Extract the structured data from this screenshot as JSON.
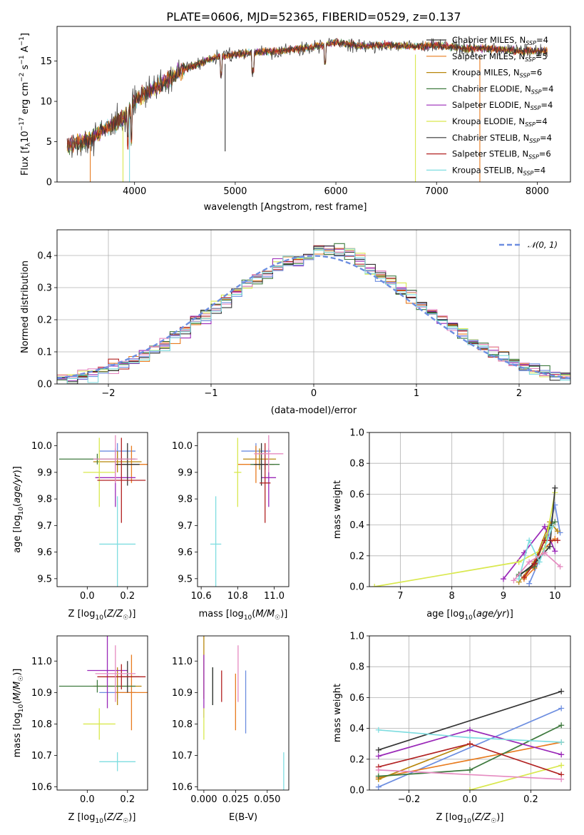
{
  "title": "PLATE=0606, MJD=52365, FIBERID=0529, z=0.137",
  "colors": [
    "#6d8ee0",
    "#e87b1f",
    "#b8860b",
    "#3f7a3f",
    "#9a28b8",
    "#d9e84e",
    "#333333",
    "#b22222",
    "#7fdde0",
    "#e58ac0"
  ],
  "chart_data": [
    {
      "type": "line",
      "name": "spectrum",
      "xlabel": "wavelength [Angstrom, rest frame]",
      "ylabel": "Flux [fλ10⁻¹⁷ erg cm⁻² s⁻¹ A⁻¹]",
      "xlim": [
        3230,
        8330
      ],
      "ylim": [
        0,
        19.3
      ],
      "xticks": [
        4000,
        5000,
        6000,
        7000,
        8000
      ],
      "yticks": [
        0,
        5,
        10,
        15
      ],
      "legend_position": "right",
      "continuum_x": [
        3330,
        3500,
        3700,
        3900,
        4000,
        4100,
        4300,
        4500,
        4800,
        5000,
        5200,
        5500,
        5800,
        6000,
        6300,
        6500,
        6800,
        7000,
        7300,
        7500,
        7800,
        8100
      ],
      "continuum_y": [
        4.5,
        5.0,
        6.5,
        8.0,
        10.0,
        11.0,
        12.3,
        14.0,
        15.5,
        15.8,
        16.1,
        16.3,
        16.8,
        17.3,
        16.8,
        17.0,
        16.8,
        17.0,
        16.5,
        16.6,
        16.3,
        16.2
      ],
      "series": [
        {
          "name": "Chabrier MILES, N_SSP=4",
          "label_main": "Chabrier MILES, N",
          "label_sub": "SSP",
          "label_end": "=4"
        },
        {
          "name": "Salpeter MILES, N_SSP=5",
          "label_main": "Salpeter MILES, N",
          "label_sub": "SSP",
          "label_end": "=5"
        },
        {
          "name": "Kroupa MILES, N_SSP=6",
          "label_main": "Kroupa MILES, N",
          "label_sub": "SSP",
          "label_end": "=6"
        },
        {
          "name": "Chabrier ELODIE, N_SSP=4",
          "label_main": "Chabrier ELODIE, N",
          "label_sub": "SSP",
          "label_end": "=4"
        },
        {
          "name": "Salpeter ELODIE, N_SSP=4",
          "label_main": "Salpeter ELODIE, N",
          "label_sub": "SSP",
          "label_end": "=4"
        },
        {
          "name": "Kroupa ELODIE, N_SSP=4",
          "label_main": "Kroupa ELODIE, N",
          "label_sub": "SSP",
          "label_end": "=4"
        },
        {
          "name": "Chabrier STELIB, N_SSP=4",
          "label_main": "Chabrier STELIB, N",
          "label_sub": "SSP",
          "label_end": "=4"
        },
        {
          "name": "Salpeter STELIB, N_SSP=6",
          "label_main": "Salpeter STELIB, N",
          "label_sub": "SSP",
          "label_end": "=6"
        },
        {
          "name": "Kroupa STELIB, N_SSP=4",
          "label_main": "Kroupa STELIB, N",
          "label_sub": "SSP",
          "label_end": "=4"
        }
      ]
    },
    {
      "type": "histogram",
      "name": "residuals",
      "xlabel": "(data-model)/error",
      "ylabel": "Normed distribution",
      "xlim": [
        -2.5,
        2.5
      ],
      "ylim": [
        0,
        0.48
      ],
      "xticks": [
        -2,
        -1,
        0,
        1,
        2
      ],
      "yticks": [
        0.0,
        0.1,
        0.2,
        0.3,
        0.4
      ],
      "grid": true,
      "legend_label": "𝒩(0, 1)",
      "legend_position": "top-right",
      "bin_width": 0.1
    },
    {
      "type": "scatter",
      "name": "age vs Z",
      "xlabel": "Z [log10(Z/Z☉)]",
      "ylabel": "age [log10(age/yr)]",
      "xlim": [
        -0.15,
        0.3
      ],
      "ylim": [
        9.47,
        10.05
      ],
      "xticks": [
        0.0,
        0.2
      ],
      "yticks": [
        9.5,
        9.6,
        9.7,
        9.8,
        9.9,
        10.0
      ],
      "points": [
        {
          "x": 0.15,
          "y": 9.98,
          "xerr": 0.09,
          "yerr": 0.03
        },
        {
          "x": 0.22,
          "y": 9.93,
          "xerr": 0.08,
          "yerr": 0.07
        },
        {
          "x": 0.15,
          "y": 9.94,
          "xerr": 0.12,
          "yerr": 0.04
        },
        {
          "x": 0.05,
          "y": 9.95,
          "xerr": 0.19,
          "yerr": 0.02
        },
        {
          "x": 0.14,
          "y": 9.88,
          "xerr": 0.1,
          "yerr": 0.11
        },
        {
          "x": 0.06,
          "y": 9.9,
          "xerr": 0.08,
          "yerr": 0.13
        },
        {
          "x": 0.2,
          "y": 9.93,
          "xerr": 0.06,
          "yerr": 0.08
        },
        {
          "x": 0.17,
          "y": 9.87,
          "xerr": 0.12,
          "yerr": 0.16
        },
        {
          "x": 0.15,
          "y": 9.63,
          "xerr": 0.09,
          "yerr": 0.18
        },
        {
          "x": 0.14,
          "y": 9.95,
          "xerr": 0.11,
          "yerr": 0.09
        }
      ]
    },
    {
      "type": "scatter",
      "name": "age vs mass",
      "xlabel": "mass [log10(M/M☉)]",
      "ylabel": "",
      "xlim": [
        10.58,
        11.08
      ],
      "ylim": [
        9.47,
        10.05
      ],
      "xticks": [
        10.6,
        10.8,
        11.0
      ],
      "yticks": [
        9.5,
        9.6,
        9.7,
        9.8,
        9.9,
        10.0
      ],
      "points": [
        {
          "x": 10.9,
          "y": 9.98,
          "xerr": 0.08,
          "yerr": 0.03
        },
        {
          "x": 10.9,
          "y": 9.93,
          "xerr": 0.1,
          "yerr": 0.07
        },
        {
          "x": 10.92,
          "y": 9.95,
          "xerr": 0.09,
          "yerr": 0.04
        },
        {
          "x": 10.95,
          "y": 9.93,
          "xerr": 0.08,
          "yerr": 0.02
        },
        {
          "x": 10.97,
          "y": 9.88,
          "xerr": 0.04,
          "yerr": 0.11
        },
        {
          "x": 10.8,
          "y": 9.9,
          "xerr": 0.02,
          "yerr": 0.13
        },
        {
          "x": 10.93,
          "y": 9.93,
          "xerr": 0.04,
          "yerr": 0.08
        },
        {
          "x": 10.95,
          "y": 9.86,
          "xerr": 0.03,
          "yerr": 0.15
        },
        {
          "x": 10.68,
          "y": 9.63,
          "xerr": 0.03,
          "yerr": 0.18
        },
        {
          "x": 10.97,
          "y": 9.97,
          "xerr": 0.08,
          "yerr": 0.07
        }
      ]
    },
    {
      "type": "line",
      "name": "mass weight vs age",
      "xlabel": "age [log10(age/yr)]",
      "ylabel": "mass weight",
      "xlim": [
        6.4,
        10.3
      ],
      "ylim": [
        0,
        1.0
      ],
      "xticks": [
        7,
        8,
        9,
        10
      ],
      "yticks": [
        0.0,
        0.2,
        0.4,
        0.6,
        0.8,
        1.0
      ],
      "grid": true,
      "series": [
        {
          "x": [
            9.5,
            9.8,
            10.0,
            10.1
          ],
          "y": [
            0.02,
            0.25,
            0.53,
            0.35
          ]
        },
        {
          "x": [
            9.4,
            9.6,
            9.8,
            10.0
          ],
          "y": [
            0.05,
            0.12,
            0.25,
            0.31
          ]
        },
        {
          "x": [
            9.3,
            9.6,
            9.9,
            10.05
          ],
          "y": [
            0.03,
            0.16,
            0.42,
            0.36
          ]
        },
        {
          "x": [
            9.3,
            9.6,
            9.9,
            10.0
          ],
          "y": [
            0.08,
            0.13,
            0.39,
            0.42
          ]
        },
        {
          "x": [
            9.0,
            9.4,
            9.8,
            10.0
          ],
          "y": [
            0.05,
            0.22,
            0.39,
            0.23
          ]
        },
        {
          "x": [
            6.5,
            9.3,
            9.8,
            10.0
          ],
          "y": [
            0.0,
            0.16,
            0.25,
            0.61
          ]
        },
        {
          "x": [
            9.3,
            9.6,
            9.9,
            10.0
          ],
          "y": [
            0.07,
            0.15,
            0.26,
            0.64
          ]
        },
        {
          "x": [
            9.4,
            9.6,
            9.8,
            10.05
          ],
          "y": [
            0.06,
            0.15,
            0.3,
            0.3
          ]
        },
        {
          "x": [
            9.3,
            9.5,
            9.7,
            9.95
          ],
          "y": [
            0.05,
            0.3,
            0.16,
            0.39
          ]
        },
        {
          "x": [
            9.2,
            9.5,
            9.8,
            10.1
          ],
          "y": [
            0.04,
            0.16,
            0.22,
            0.13
          ]
        }
      ]
    },
    {
      "type": "scatter",
      "name": "mass vs Z",
      "xlabel": "Z [log10(Z/Z☉)]",
      "ylabel": "mass [log10(M/M☉)]",
      "xlim": [
        -0.15,
        0.3
      ],
      "ylim": [
        10.59,
        11.08
      ],
      "xticks": [
        0.0,
        0.2
      ],
      "yticks": [
        10.6,
        10.7,
        10.8,
        10.9,
        11.0
      ],
      "points": [
        {
          "x": 0.15,
          "y": 10.9,
          "xerr": 0.09,
          "yerr": 0.02
        },
        {
          "x": 0.22,
          "y": 10.9,
          "xerr": 0.08,
          "yerr": 0.12
        },
        {
          "x": 0.15,
          "y": 10.92,
          "xerr": 0.12,
          "yerr": 0.06
        },
        {
          "x": 0.05,
          "y": 10.92,
          "xerr": 0.19,
          "yerr": 0.02
        },
        {
          "x": 0.1,
          "y": 10.97,
          "xerr": 0.1,
          "yerr": 0.12
        },
        {
          "x": 0.06,
          "y": 10.8,
          "xerr": 0.08,
          "yerr": 0.05
        },
        {
          "x": 0.2,
          "y": 10.95,
          "xerr": 0.06,
          "yerr": 0.05
        },
        {
          "x": 0.17,
          "y": 10.95,
          "xerr": 0.12,
          "yerr": 0.04
        },
        {
          "x": 0.15,
          "y": 10.68,
          "xerr": 0.09,
          "yerr": 0.03
        },
        {
          "x": 0.14,
          "y": 10.96,
          "xerr": 0.1,
          "yerr": 0.09
        }
      ]
    },
    {
      "type": "scatter",
      "name": "mass vs E(B-V)",
      "xlabel": "E(B-V)",
      "ylabel": "",
      "xlim": [
        -0.005,
        0.067
      ],
      "ylim": [
        10.59,
        11.08
      ],
      "xticks": [
        0.0,
        0.025,
        0.05
      ],
      "yticks": [
        10.6,
        10.7,
        10.8,
        10.9,
        11.0
      ],
      "points": [
        {
          "x": 0.033,
          "y": 10.87,
          "yerr": 0.1
        },
        {
          "x": 0.025,
          "y": 10.87,
          "yerr": 0.09
        },
        {
          "x": 0.0,
          "y": 11.0,
          "yerr": 0.12
        },
        {
          "x": 0.007,
          "y": 10.92,
          "yerr": 0.06
        },
        {
          "x": 0.0,
          "y": 10.92,
          "yerr": 0.1
        },
        {
          "x": 0.0,
          "y": 10.8,
          "yerr": 0.05
        },
        {
          "x": 0.007,
          "y": 10.92,
          "yerr": 0.06
        },
        {
          "x": 0.014,
          "y": 10.92,
          "yerr": 0.05
        },
        {
          "x": 0.063,
          "y": 10.65,
          "yerr": 0.06
        },
        {
          "x": 0.027,
          "y": 10.96,
          "yerr": 0.09
        }
      ]
    },
    {
      "type": "line",
      "name": "mass weight vs Z",
      "xlabel": "Z [log10(Z/Z☉)]",
      "ylabel": "mass weight",
      "xlim": [
        -0.33,
        0.33
      ],
      "ylim": [
        0,
        1.0
      ],
      "xticks": [
        -0.2,
        0.0,
        0.2
      ],
      "yticks": [
        0.0,
        0.2,
        0.4,
        0.6,
        0.8,
        1.0
      ],
      "grid": true,
      "series": [
        {
          "x": [
            -0.3,
            0.3
          ],
          "y": [
            0.02,
            0.53
          ]
        },
        {
          "x": [
            -0.3,
            0.3
          ],
          "y": [
            0.08,
            0.31
          ]
        },
        {
          "x": [
            -0.3,
            0.0
          ],
          "y": [
            0.07,
            0.3
          ]
        },
        {
          "x": [
            -0.3,
            0.0,
            0.3
          ],
          "y": [
            0.09,
            0.13,
            0.42
          ]
        },
        {
          "x": [
            -0.3,
            0.0,
            0.3
          ],
          "y": [
            0.22,
            0.39,
            0.23
          ]
        },
        {
          "x": [
            0.0,
            0.3
          ],
          "y": [
            0.0,
            0.16
          ]
        },
        {
          "x": [
            -0.3,
            0.3
          ],
          "y": [
            0.26,
            0.64
          ]
        },
        {
          "x": [
            -0.3,
            0.0,
            0.3
          ],
          "y": [
            0.15,
            0.3,
            0.1
          ]
        },
        {
          "x": [
            -0.3,
            0.0,
            0.3
          ],
          "y": [
            0.39,
            0.34,
            0.31
          ]
        },
        {
          "x": [
            -0.3,
            0.3
          ],
          "y": [
            0.13,
            0.07
          ]
        }
      ]
    }
  ]
}
